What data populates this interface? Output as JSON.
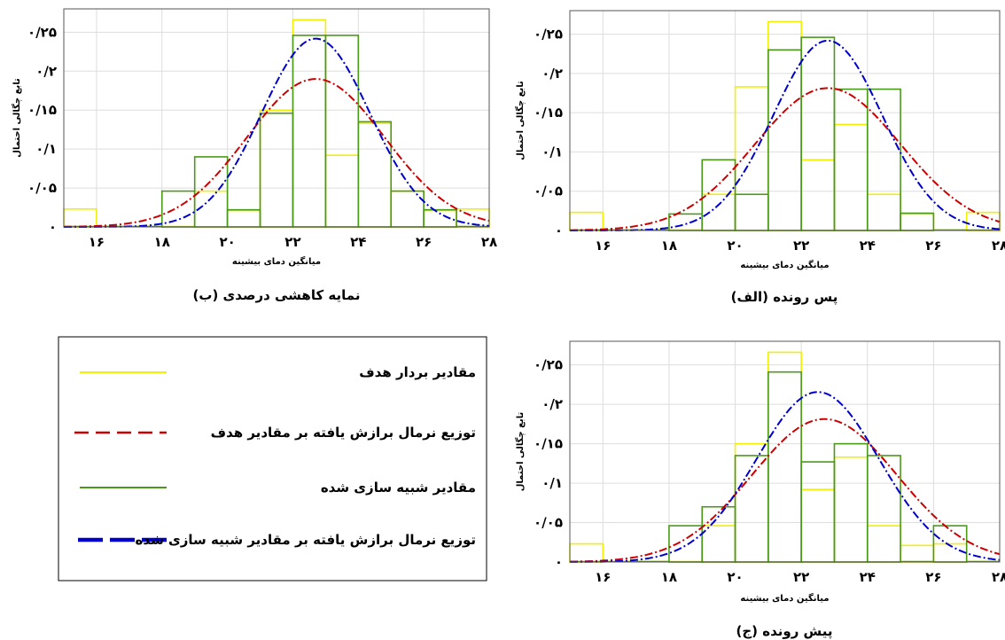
{
  "colors": {
    "target": "#f0f000",
    "target_fit": "#cc0000",
    "sim": "#4a9a1a",
    "sim_fit": "#0000cc"
  },
  "legend": {
    "items": [
      {
        "label": "مقادیر بردار هدف",
        "color": "#f0f000",
        "style": "solid"
      },
      {
        "label": "توزیع نرمال برازش یافته بر مقادیر هدف",
        "color": "#cc0000",
        "style": "dashed"
      },
      {
        "label": "مقادیر شبیه سازی شده",
        "color": "#4a9a1a",
        "style": "solid"
      },
      {
        "label": "توزیع نرمال برازش یافته بر مقادیر شبیه سازی شده",
        "color": "#0000cc",
        "style": "dashed"
      }
    ]
  },
  "chart_data": [
    {
      "type": "bar",
      "panel": "top-left",
      "caption": "(ب) نمایه کاهشی درصدی",
      "xlabel": "میانگین دمای بیشینه",
      "ylabel": "تابع چگالی احتمال",
      "xlim": [
        15,
        28
      ],
      "ylim": [
        0,
        0.28
      ],
      "xticks": [
        {
          "v": 16,
          "t": "۱۶"
        },
        {
          "v": 18,
          "t": "۱۸"
        },
        {
          "v": 20,
          "t": "۲۰"
        },
        {
          "v": 22,
          "t": "۲۲"
        },
        {
          "v": 24,
          "t": "۲۴"
        },
        {
          "v": 26,
          "t": "۲۶"
        },
        {
          "v": 28,
          "t": "۲۸"
        }
      ],
      "yticks": [
        {
          "v": 0,
          "t": "۰"
        },
        {
          "v": 0.05,
          "t": "۰/۰۵"
        },
        {
          "v": 0.1,
          "t": "۰/۱"
        },
        {
          "v": 0.15,
          "t": "۰/۱۵"
        },
        {
          "v": 0.2,
          "t": "۰/۲"
        },
        {
          "v": 0.25,
          "t": "۰/۲۵"
        }
      ],
      "bin_edges": [
        15,
        16,
        17,
        18,
        19,
        20,
        21,
        22,
        23,
        24,
        25,
        26,
        27,
        28
      ],
      "series": [
        {
          "name": "مقادیر بردار هدف",
          "values": [
            0.023,
            0,
            0,
            0,
            0.046,
            0.021,
            0.15,
            0.266,
            0.092,
            0.133,
            0.046,
            0.021,
            0.023
          ]
        },
        {
          "name": "مقادیر شبیه سازی شده",
          "values": [
            0,
            0,
            0,
            0.046,
            0.09,
            0.022,
            0.146,
            0.246,
            0.246,
            0.135,
            0.046,
            0.022,
            0
          ]
        }
      ],
      "fits": [
        {
          "name": "توزیع نرمال برازش یافته بر مقادیر هدف",
          "mean": 22.7,
          "sd": 2.1
        },
        {
          "name": "توزیع نرمال برازش یافته بر مقادیر شبیه سازی شده",
          "mean": 22.7,
          "sd": 1.65
        }
      ]
    },
    {
      "type": "bar",
      "panel": "top-right",
      "caption": "(الف) پس رونده",
      "xlabel": "میانگین دمای بیشینه",
      "ylabel": "تابع چگالی احتمال",
      "xlim": [
        15,
        28
      ],
      "ylim": [
        0,
        0.28
      ],
      "xticks": [
        {
          "v": 16,
          "t": "۱۶"
        },
        {
          "v": 18,
          "t": "۱۸"
        },
        {
          "v": 20,
          "t": "۲۰"
        },
        {
          "v": 22,
          "t": "۲۲"
        },
        {
          "v": 24,
          "t": "۲۴"
        },
        {
          "v": 26,
          "t": "۲۶"
        },
        {
          "v": 28,
          "t": "۲۸"
        }
      ],
      "yticks": [
        {
          "v": 0,
          "t": "۰"
        },
        {
          "v": 0.05,
          "t": "۰/۰۵"
        },
        {
          "v": 0.1,
          "t": "۰/۱"
        },
        {
          "v": 0.15,
          "t": "۰/۱۵"
        },
        {
          "v": 0.2,
          "t": "۰/۲"
        },
        {
          "v": 0.25,
          "t": "۰/۲۵"
        }
      ],
      "bin_edges": [
        15,
        16,
        17,
        18,
        19,
        20,
        21,
        22,
        23,
        24,
        25,
        26,
        27,
        28
      ],
      "series": [
        {
          "name": "مقادیر بردار هدف",
          "values": [
            0.023,
            0,
            0,
            0,
            0.046,
            0.183,
            0.266,
            0.09,
            0.135,
            0.046,
            0.021,
            0,
            0.023
          ]
        },
        {
          "name": "مقادیر شبیه سازی شده",
          "values": [
            0,
            0,
            0,
            0.021,
            0.09,
            0.046,
            0.23,
            0.246,
            0.18,
            0.18,
            0.022,
            0,
            0
          ]
        }
      ],
      "fits": [
        {
          "name": "توزیع نرمال برازش یافته بر مقادیر هدف",
          "mean": 22.8,
          "sd": 2.2
        },
        {
          "name": "توزیع نرمال برازش یافته بر مقادیر شبیه سازی شده",
          "mean": 22.8,
          "sd": 1.65
        }
      ]
    },
    {
      "type": "bar",
      "panel": "bottom-right",
      "caption": "(ج) پیش رونده",
      "xlabel": "میانگین دمای بیشینه",
      "ylabel": "تابع چگالی احتمال",
      "xlim": [
        15,
        28
      ],
      "ylim": [
        0,
        0.28
      ],
      "xticks": [
        {
          "v": 16,
          "t": "۱۶"
        },
        {
          "v": 18,
          "t": "۱۸"
        },
        {
          "v": 20,
          "t": "۲۰"
        },
        {
          "v": 22,
          "t": "۲۲"
        },
        {
          "v": 24,
          "t": "۲۴"
        },
        {
          "v": 26,
          "t": "۲۶"
        },
        {
          "v": 28,
          "t": "۲۸"
        }
      ],
      "yticks": [
        {
          "v": 0,
          "t": "۰"
        },
        {
          "v": 0.05,
          "t": "۰/۰۵"
        },
        {
          "v": 0.1,
          "t": "۰/۱"
        },
        {
          "v": 0.15,
          "t": "۰/۱۵"
        },
        {
          "v": 0.2,
          "t": "۰/۲"
        },
        {
          "v": 0.25,
          "t": "۰/۲۵"
        }
      ],
      "bin_edges": [
        15,
        16,
        17,
        18,
        19,
        20,
        21,
        22,
        23,
        24,
        25,
        26,
        27,
        28
      ],
      "series": [
        {
          "name": "مقادیر بردار هدف",
          "values": [
            0.023,
            0,
            0,
            0,
            0.046,
            0.15,
            0.266,
            0.092,
            0.133,
            0.046,
            0.021,
            0.023,
            0
          ]
        },
        {
          "name": "مقادیر شبیه سازی شده",
          "values": [
            0,
            0,
            0,
            0.046,
            0.07,
            0.135,
            0.241,
            0.127,
            0.15,
            0.135,
            0,
            0.046,
            0
          ]
        }
      ],
      "fits": [
        {
          "name": "توزیع نرمال برازش یافته بر مقادیر هدف",
          "mean": 22.7,
          "sd": 2.2
        },
        {
          "name": "توزیع نرمال برازش یافته بر مقادیر شبیه سازی شده",
          "mean": 22.5,
          "sd": 1.85
        }
      ]
    }
  ]
}
